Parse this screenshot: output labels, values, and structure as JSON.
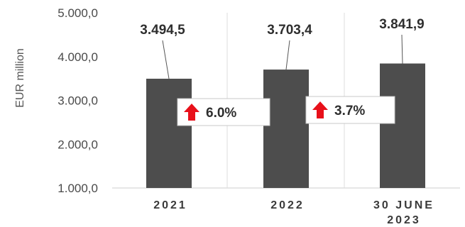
{
  "chart_data": {
    "type": "bar",
    "ylabel": "EUR million",
    "ylim": [
      1000,
      5000
    ],
    "yticks": [
      "5.000,0",
      "4.000,0",
      "3.000,0",
      "2.000,0",
      "1.000,0"
    ],
    "ytick_values": [
      5000,
      4000,
      3000,
      2000,
      1000
    ],
    "categories": [
      [
        "2021"
      ],
      [
        "2022"
      ],
      [
        "30 JUNE",
        "2023"
      ]
    ],
    "values": [
      3494.5,
      3703.4,
      3841.9
    ],
    "data_labels": [
      "3.494,5",
      "3.703,4",
      "3.841,9"
    ],
    "grid": true,
    "annotations": [
      {
        "text": "6.0%",
        "between": [
          0,
          1
        ],
        "direction": "up"
      },
      {
        "text": "3.7%",
        "between": [
          1,
          2
        ],
        "direction": "up"
      }
    ],
    "colors": {
      "bar": "#4d4d4d",
      "arrow": "#e8101a",
      "grid": "#dddddd"
    }
  }
}
